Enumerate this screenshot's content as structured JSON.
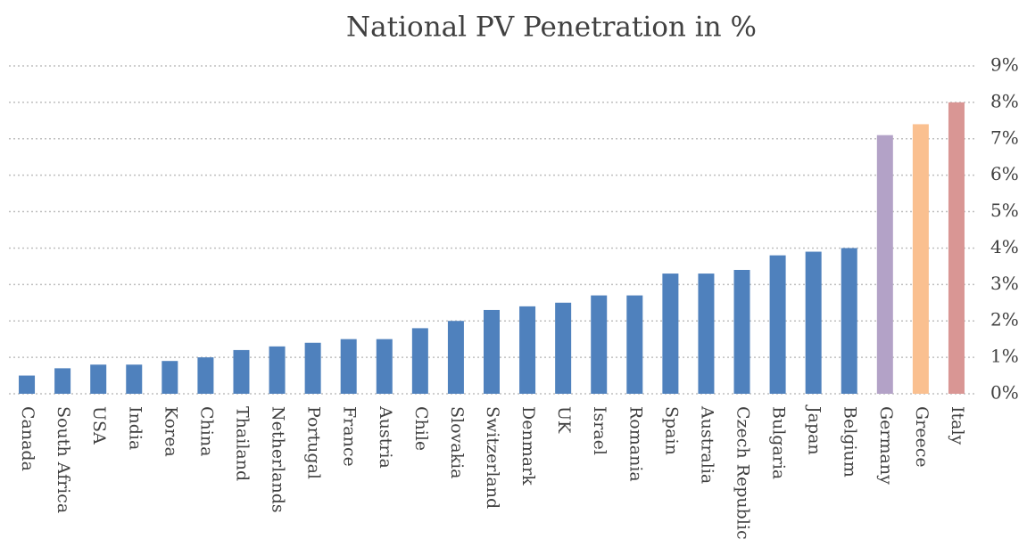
{
  "chart_data": {
    "type": "bar",
    "title": "National PV Penetration in %",
    "categories": [
      "Canada",
      "South Africa",
      "USA",
      "India",
      "Korea",
      "China",
      "Thailand",
      "Netherlands",
      "Portugal",
      "France",
      "Austria",
      "Chile",
      "Slovakia",
      "Switzerland",
      "Denmark",
      "UK",
      "Israel",
      "Romania",
      "Spain",
      "Australia",
      "Czech Republic",
      "Bulgaria",
      "Japan",
      "Belgium",
      "Germany",
      "Greece",
      "Italy"
    ],
    "values": [
      0.5,
      0.7,
      0.8,
      0.8,
      0.9,
      1.0,
      1.2,
      1.3,
      1.4,
      1.5,
      1.5,
      1.8,
      2.0,
      2.3,
      2.4,
      2.5,
      2.7,
      2.7,
      3.3,
      3.3,
      3.4,
      3.8,
      3.9,
      4.0,
      7.1,
      7.4,
      8.0
    ],
    "colors": [
      "#4f81bd",
      "#4f81bd",
      "#4f81bd",
      "#4f81bd",
      "#4f81bd",
      "#4f81bd",
      "#4f81bd",
      "#4f81bd",
      "#4f81bd",
      "#4f81bd",
      "#4f81bd",
      "#4f81bd",
      "#4f81bd",
      "#4f81bd",
      "#4f81bd",
      "#4f81bd",
      "#4f81bd",
      "#4f81bd",
      "#4f81bd",
      "#4f81bd",
      "#4f81bd",
      "#4f81bd",
      "#4f81bd",
      "#4f81bd",
      "#b3a2c7",
      "#fac090",
      "#d99694"
    ],
    "ylim": [
      0,
      9
    ],
    "yticks": [
      {
        "value": 0,
        "label": "0%"
      },
      {
        "value": 1,
        "label": "1%"
      },
      {
        "value": 2,
        "label": "2%"
      },
      {
        "value": 3,
        "label": "3%"
      },
      {
        "value": 4,
        "label": "4%"
      },
      {
        "value": 5,
        "label": "5%"
      },
      {
        "value": 6,
        "label": "6%"
      },
      {
        "value": 7,
        "label": "7%"
      },
      {
        "value": 8,
        "label": "8%"
      },
      {
        "value": 9,
        "label": "9%"
      }
    ],
    "grid": true,
    "y_axis_side": "right"
  }
}
